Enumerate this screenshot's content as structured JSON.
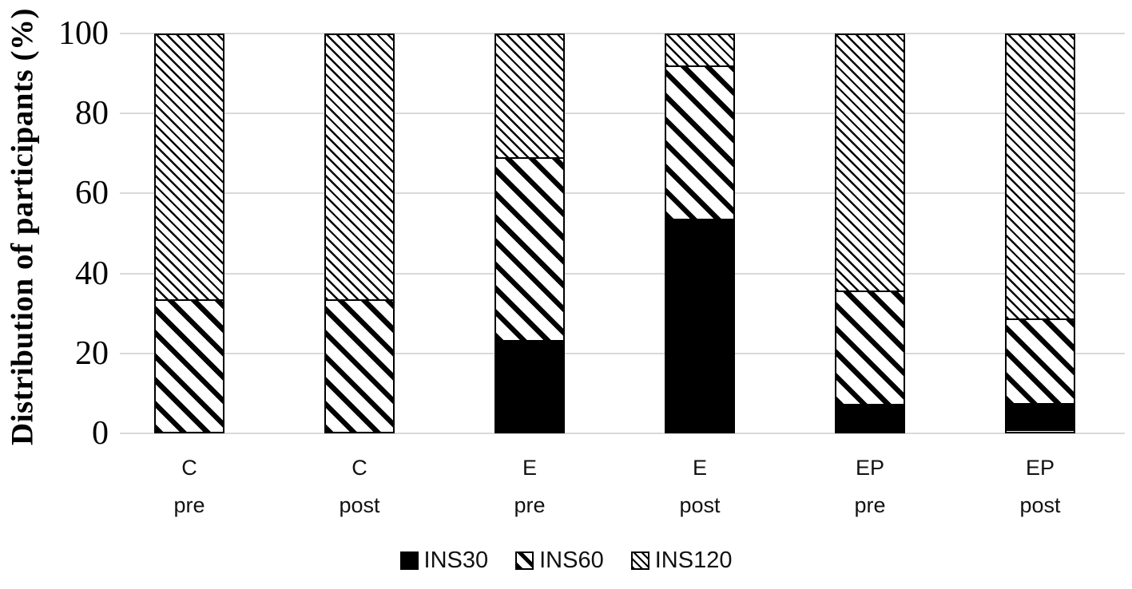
{
  "colors": {
    "background": "#ffffff",
    "gridline": "#d9d9d9",
    "bar_fill": "#000000",
    "text": "#000000"
  },
  "chart_data": {
    "type": "bar",
    "stacked": true,
    "title": "",
    "xlabel": "",
    "ylabel": "Distribution of participants (%)",
    "ylim": [
      0,
      100
    ],
    "yticks": [
      0,
      20,
      40,
      60,
      80,
      100
    ],
    "grid": true,
    "legend_position": "bottom",
    "categories": [
      {
        "group": "C",
        "time": "pre"
      },
      {
        "group": "C",
        "time": "post"
      },
      {
        "group": "E",
        "time": "pre"
      },
      {
        "group": "E",
        "time": "post"
      },
      {
        "group": "EP",
        "time": "pre"
      },
      {
        "group": "EP",
        "time": "post"
      }
    ],
    "series": [
      {
        "name": "INS30",
        "pattern": "solid-black",
        "values": [
          0,
          0,
          23.1,
          53.8,
          7.1,
          7.1
        ]
      },
      {
        "name": "INS60",
        "pattern": "thick-diagonal-hatch",
        "values": [
          33.3,
          33.3,
          46.2,
          38.5,
          28.6,
          21.4
        ]
      },
      {
        "name": "INS120",
        "pattern": "thin-diagonal-hatch",
        "values": [
          66.7,
          66.7,
          30.8,
          7.7,
          64.3,
          71.4
        ]
      }
    ]
  }
}
